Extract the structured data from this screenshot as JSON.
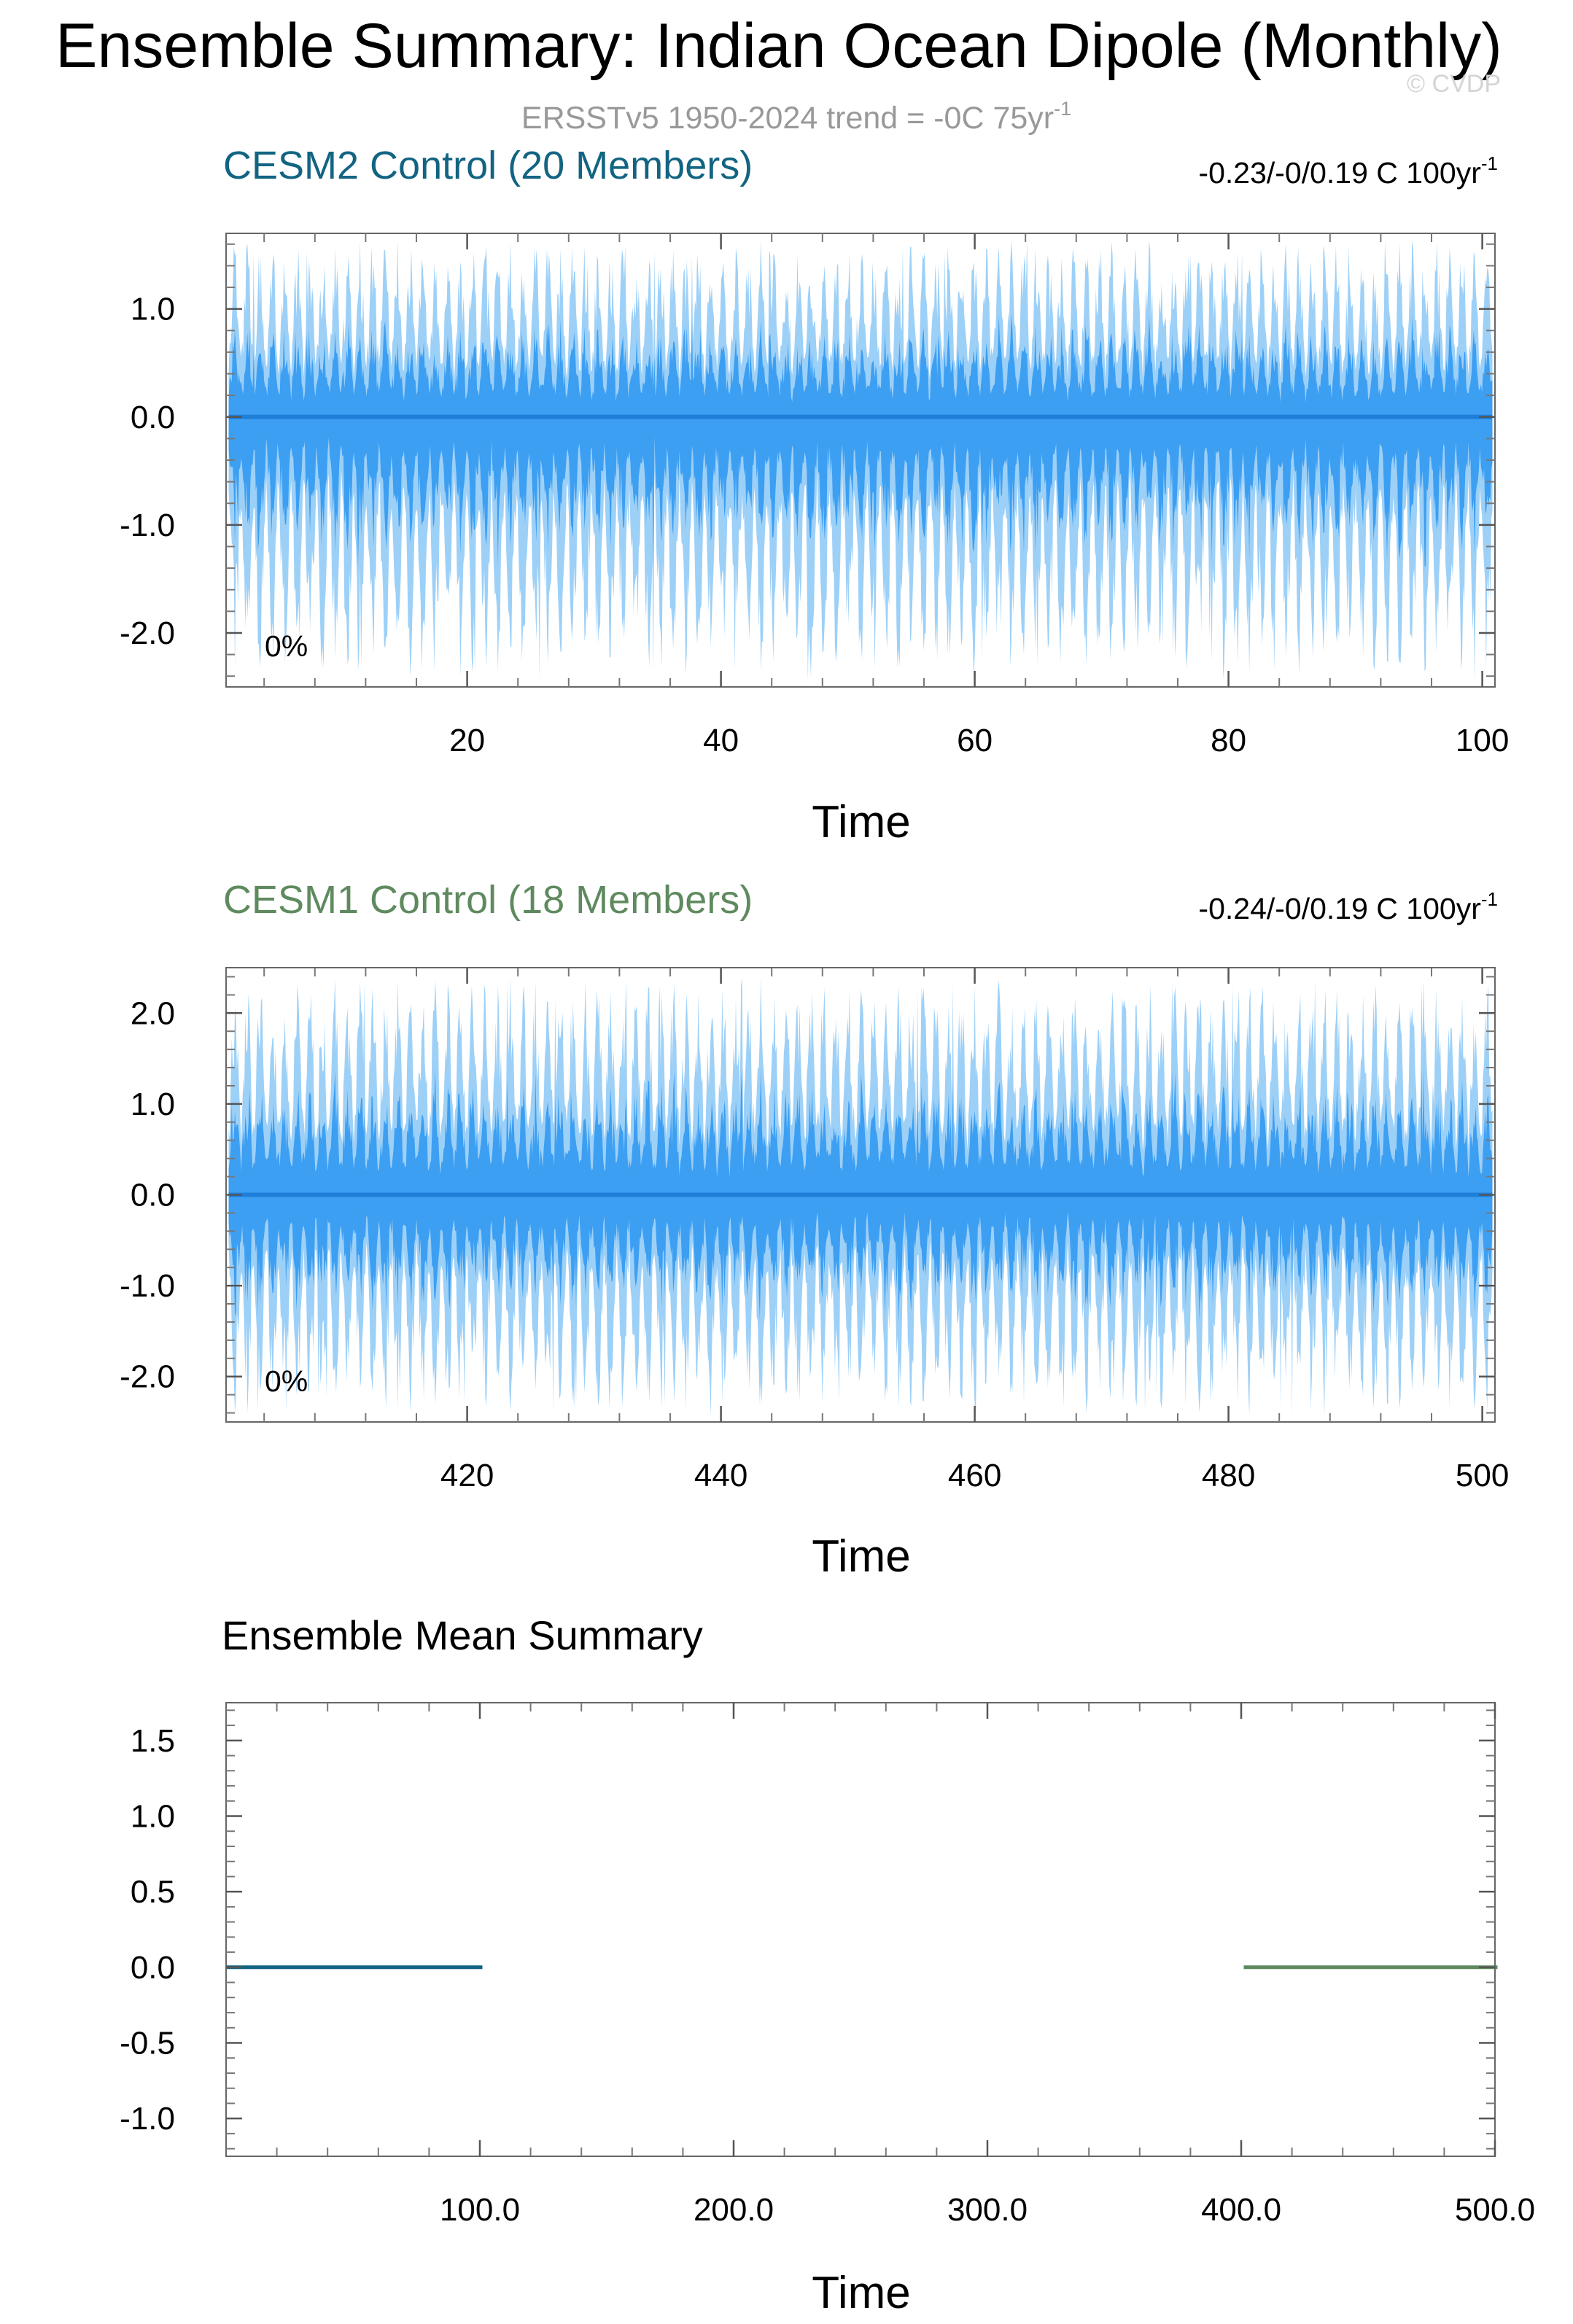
{
  "page": {
    "title": "Ensemble Summary: Indian Ocean Dipole (Monthly)",
    "subtitle": "ERSSTv5 1950-2024 trend = -0C 75yr",
    "subtitle_sup": "-1",
    "watermark": "© CVDP"
  },
  "colors": {
    "cesm2": "#126482",
    "cesm1": "#5f8a5f",
    "spread_light": "#9dd0f7",
    "spread_dark": "#3d9ff2",
    "mean_line": "#1f7fd8",
    "subtitle": "#999999"
  },
  "chart_data": [
    {
      "type": "area",
      "title": "CESM2 Control (20 Members)",
      "stats": "-0.23/-0/0.19 C 100yr",
      "stats_sup": "-1",
      "percent_label": "0%",
      "xlabel": "Time",
      "ylabel": "",
      "xlim": [
        1,
        101
      ],
      "ylim": [
        -2.5,
        1.7
      ],
      "xticks": [
        20,
        40,
        60,
        80,
        100
      ],
      "xtick_labels": [
        "20",
        "40",
        "60",
        "80",
        "100"
      ],
      "yticks": [
        1.0,
        0.0,
        -1.0,
        -2.0
      ],
      "ytick_labels": [
        "1.0",
        "0.0",
        "-1.0",
        "-2.0"
      ],
      "ensemble_mean": 0.0,
      "spread_max": 1.65,
      "spread_min": -2.45,
      "grid": false
    },
    {
      "type": "area",
      "title": "CESM1 Control (18 Members)",
      "stats": "-0.24/-0/0.19 C 100yr",
      "stats_sup": "-1",
      "percent_label": "0%",
      "xlabel": "Time",
      "ylabel": "",
      "xlim": [
        401,
        501
      ],
      "ylim": [
        -2.5,
        2.5
      ],
      "xticks": [
        420,
        440,
        460,
        480,
        500
      ],
      "xtick_labels": [
        "420",
        "440",
        "460",
        "480",
        "500"
      ],
      "yticks": [
        2.0,
        1.0,
        0.0,
        -1.0,
        -2.0
      ],
      "ytick_labels": [
        "2.0",
        "1.0",
        "0.0",
        "-1.0",
        "-2.0"
      ],
      "ensemble_mean": 0.0,
      "spread_max": 2.4,
      "spread_min": -2.45,
      "grid": false
    },
    {
      "type": "line",
      "title": "Ensemble Mean Summary",
      "xlabel": "Time",
      "ylabel": "",
      "xlim": [
        0,
        500
      ],
      "ylim": [
        -1.25,
        1.75
      ],
      "xticks": [
        100,
        200,
        300,
        400,
        500
      ],
      "xtick_labels": [
        "100.0",
        "200.0",
        "300.0",
        "400.0",
        "500.0"
      ],
      "yticks": [
        1.5,
        1.0,
        0.5,
        0.0,
        -0.5,
        -1.0
      ],
      "ytick_labels": [
        "1.5",
        "1.0",
        "0.5",
        "0.0",
        "-0.5",
        "-1.0"
      ],
      "series": [
        {
          "name": "CESM2 Control (20 Members)",
          "x": [
            0,
            101
          ],
          "y": [
            0.0,
            0.0
          ],
          "color": "#126482"
        },
        {
          "name": "CESM1 Control (18 Members)",
          "x": [
            401,
            501
          ],
          "y": [
            0.0,
            0.0
          ],
          "color": "#5f8a5f"
        }
      ],
      "grid": false
    }
  ]
}
